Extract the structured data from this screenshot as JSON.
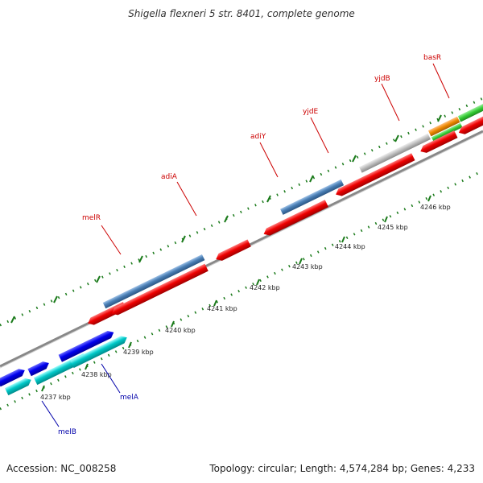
{
  "title": "Shigella flexneri 5 str. 8401, complete genome",
  "footer": {
    "accession": "Accession: NC_008258",
    "summary": "Topology: circular; Length: 4,574,284 bp; Genes: 4,233"
  },
  "ticks": [
    {
      "label": "4237 kbp"
    },
    {
      "label": "4238 kbp"
    },
    {
      "label": "4239 kbp"
    },
    {
      "label": "4240 kbp"
    },
    {
      "label": "4241 kbp"
    },
    {
      "label": "4242 kbp"
    },
    {
      "label": "4243 kbp"
    },
    {
      "label": "4244 kbp"
    },
    {
      "label": "4245 kbp"
    },
    {
      "label": "4246 kbp"
    }
  ],
  "gene_labels": [
    {
      "name": "melR",
      "color": "#cc0000"
    },
    {
      "name": "adiA",
      "color": "#cc0000"
    },
    {
      "name": "adiY",
      "color": "#cc0000"
    },
    {
      "name": "yjdE",
      "color": "#cc0000"
    },
    {
      "name": "yjdB",
      "color": "#cc0000"
    },
    {
      "name": "basR",
      "color": "#cc0000"
    },
    {
      "name": "melA",
      "color": "#0000aa"
    },
    {
      "name": "melB",
      "color": "#0000aa"
    }
  ],
  "feature_colors": {
    "cds_reverse": "#ee0000",
    "gene_steelblue": "#4a7fb5",
    "gene_gray": "#bbbbbb",
    "forward_blue": "#0000ee",
    "forward_cyan": "#00c8c8",
    "gene_green": "#33cc33",
    "gene_orange": "#ee8800",
    "backbone": "#888888",
    "tick_green": "#1a7a1a"
  }
}
